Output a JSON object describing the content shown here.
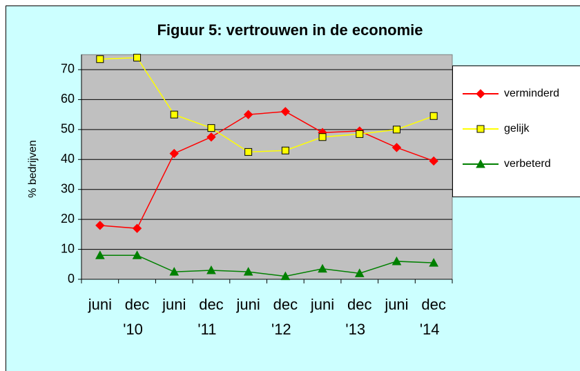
{
  "chart_data": {
    "type": "line",
    "title": "Figuur 5: vertrouwen in de economie",
    "y_label": "% bedrijven",
    "categories": [
      "juni",
      "dec",
      "juni",
      "dec",
      "juni",
      "dec",
      "juni",
      "dec",
      "juni",
      "dec"
    ],
    "year_labels": [
      "'10",
      "'11",
      "'12",
      "'13",
      "'14"
    ],
    "series": [
      {
        "name": "verminderd",
        "color": "#ff0000",
        "marker": "diamond",
        "values": [
          18,
          17,
          42,
          47.5,
          55,
          56,
          49,
          49.5,
          44,
          39.5
        ]
      },
      {
        "name": "gelijk",
        "color": "#ffff00",
        "marker": "square",
        "values": [
          73.5,
          74,
          55,
          50.5,
          42.5,
          43,
          47.5,
          48.5,
          50,
          54.5
        ]
      },
      {
        "name": "verbeterd",
        "color": "#008000",
        "marker": "triangle",
        "values": [
          8,
          8,
          2.5,
          3,
          2.5,
          1,
          3.5,
          2,
          6,
          5.5
        ]
      }
    ],
    "ylim": [
      0,
      75
    ],
    "yticks": [
      0,
      10,
      20,
      30,
      40,
      50,
      60,
      70
    ],
    "grid": true,
    "legend": "right"
  }
}
